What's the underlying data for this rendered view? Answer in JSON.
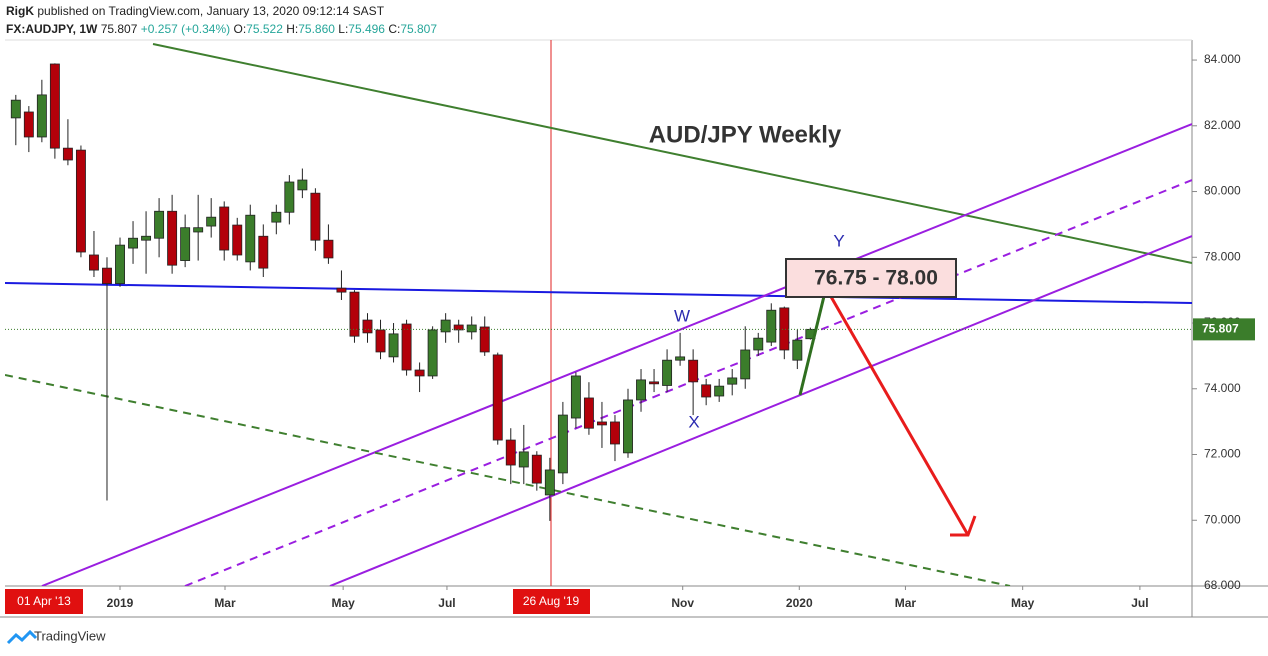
{
  "header": {
    "publisher": "RigK",
    "published": "published on TradingView.com, January 13, 2020 09:12:14 SAST",
    "symbol": "FX:AUDJPY, 1W",
    "last": "75.807",
    "change": "+0.257 (+0.34%)",
    "open_label": "O:",
    "open": "75.522",
    "high_label": "H:",
    "high": "75.860",
    "low_label": "L:",
    "low": "75.496",
    "close_label": "C:",
    "close": "75.807"
  },
  "footer": {
    "brand": "TradingView"
  },
  "chart_data": {
    "type": "candlestick",
    "title": "AUD/JPY Weekly",
    "annotations": {
      "target": "76.75 - 78.00",
      "wave_w": "W",
      "wave_x": "X",
      "wave_y": "Y"
    },
    "crosshair_labels": [
      "01 Apr '13",
      "26 Aug '19"
    ],
    "up_color": "#3b7d2b",
    "down_color": "#b3000a",
    "x": [
      -8,
      -7,
      -6,
      -5,
      -4,
      -3,
      -2,
      -1,
      0,
      1,
      2,
      3,
      4,
      5,
      6,
      7,
      8,
      9,
      10,
      11,
      12,
      13,
      14,
      15,
      16,
      17,
      18,
      19,
      20,
      21,
      22,
      23,
      24,
      25,
      26,
      27,
      28,
      29,
      30,
      31,
      32,
      33,
      34,
      35,
      36,
      37,
      38,
      39,
      40,
      41,
      42,
      43,
      44,
      45,
      46,
      47,
      48,
      49,
      50,
      51,
      52,
      53
    ],
    "open": [
      82.24,
      82.42,
      81.66,
      83.88,
      81.32,
      81.26,
      78.07,
      77.67,
      77.2,
      78.28,
      78.52,
      78.58,
      79.4,
      77.9,
      78.77,
      78.95,
      79.53,
      78.98,
      77.86,
      78.64,
      79.07,
      79.37,
      80.05,
      79.95,
      78.52,
      77.06,
      76.94,
      76.09,
      75.79,
      74.97,
      75.97,
      74.57,
      74.39,
      75.73,
      75.94,
      75.73,
      75.88,
      75.03,
      72.44,
      71.62,
      71.98,
      70.77,
      71.44,
      73.11,
      73.72,
      72.99,
      72.99,
      72.05,
      73.66,
      74.21,
      74.1,
      74.87,
      74.87,
      74.12,
      73.78,
      74.14,
      74.3,
      75.18,
      75.42,
      76.46,
      74.87,
      75.522
    ],
    "high": [
      82.94,
      82.6,
      83.4,
      83.9,
      82.2,
      81.4,
      78.8,
      78.0,
      78.6,
      79.1,
      79.4,
      79.8,
      79.9,
      79.3,
      79.9,
      79.8,
      79.7,
      79.2,
      79.6,
      79.0,
      79.6,
      80.5,
      80.7,
      80.1,
      79.0,
      77.6,
      77.0,
      76.3,
      76.1,
      76.0,
      76.1,
      74.8,
      75.9,
      76.3,
      76.1,
      76.2,
      76.2,
      75.1,
      72.8,
      72.9,
      72.1,
      71.9,
      73.6,
      74.5,
      74.2,
      73.6,
      73.2,
      74.0,
      74.6,
      74.6,
      75.2,
      75.7,
      75.2,
      74.3,
      74.3,
      74.6,
      75.9,
      75.7,
      76.6,
      76.5,
      75.8,
      75.86
    ],
    "low": [
      81.41,
      81.2,
      81.5,
      81.0,
      80.8,
      78.0,
      77.4,
      70.6,
      77.1,
      77.8,
      77.5,
      78.0,
      77.5,
      77.7,
      77.9,
      78.6,
      77.9,
      77.9,
      77.6,
      77.4,
      78.7,
      79.0,
      79.8,
      78.2,
      77.8,
      76.7,
      75.4,
      75.4,
      74.9,
      74.8,
      74.4,
      73.9,
      74.3,
      75.4,
      75.4,
      75.5,
      75.0,
      72.3,
      71.1,
      71.1,
      70.9,
      69.98,
      71.1,
      72.8,
      72.6,
      72.2,
      71.8,
      71.9,
      73.3,
      73.9,
      73.9,
      74.7,
      73.2,
      73.5,
      73.6,
      73.8,
      74.0,
      75.0,
      75.3,
      74.9,
      74.6,
      75.496
    ],
    "close": [
      82.78,
      81.66,
      82.94,
      81.32,
      80.96,
      78.16,
      77.61,
      77.2,
      78.37,
      78.58,
      78.64,
      79.4,
      77.76,
      78.9,
      78.9,
      79.22,
      78.22,
      78.07,
      79.28,
      77.67,
      79.37,
      80.29,
      80.35,
      78.52,
      77.98,
      76.94,
      75.6,
      75.7,
      75.12,
      75.67,
      74.57,
      74.39,
      75.79,
      76.09,
      75.79,
      75.94,
      75.12,
      72.44,
      71.68,
      72.08,
      71.13,
      71.53,
      73.2,
      74.39,
      72.8,
      72.9,
      72.32,
      73.66,
      74.27,
      74.15,
      74.87,
      74.97,
      74.21,
      73.75,
      74.08,
      74.33,
      75.18,
      75.54,
      76.39,
      75.18,
      75.48,
      75.807
    ],
    "last_price": 75.807,
    "last_price_color": "#3b7d2b",
    "xlim": [
      -8.83,
      82.3
    ],
    "xticks": [
      {
        "value": 0,
        "label": "2019"
      },
      {
        "value": 8.06,
        "label": "Mar"
      },
      {
        "value": 17.13,
        "label": "May"
      },
      {
        "value": 25.1,
        "label": "Jul"
      },
      {
        "value": 43.2,
        "label": "Nov"
      },
      {
        "value": 52.15,
        "label": "2020"
      },
      {
        "value": 60.3,
        "label": "Mar"
      },
      {
        "value": 69.3,
        "label": "May"
      },
      {
        "value": 78.3,
        "label": "Jul"
      }
    ],
    "ylim": [
      68,
      84.61
    ],
    "yticks": [
      {
        "value": 68,
        "label": "68.000"
      },
      {
        "value": 70,
        "label": "70.000"
      },
      {
        "value": 72,
        "label": "72.000"
      },
      {
        "value": 74,
        "label": "74.000"
      },
      {
        "value": 76,
        "label": "76.000"
      },
      {
        "value": 78,
        "label": "78.000"
      },
      {
        "value": 80,
        "label": "80.000"
      },
      {
        "value": 82,
        "label": "82.000"
      },
      {
        "value": 84,
        "label": "84.000"
      }
    ]
  }
}
